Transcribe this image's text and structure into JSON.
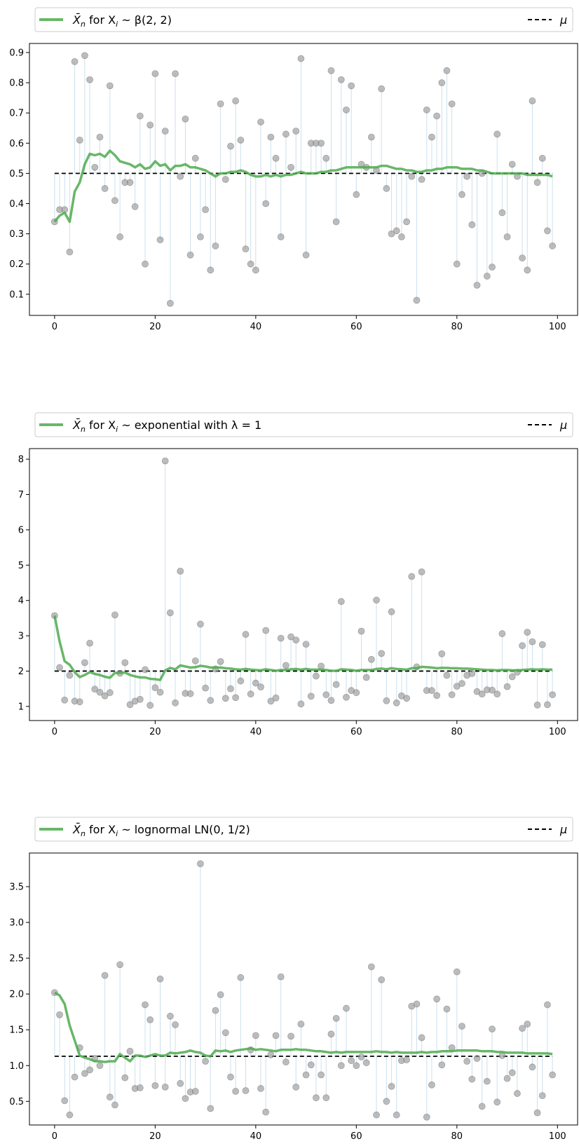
{
  "chart_data": [
    {
      "type": "scatter",
      "legend": {
        "placement": "top",
        "entries": [
          {
            "label_prefix": "X̄",
            "label_subscript": "n",
            "label_mid": " for X",
            "label_mid_subscript": "i",
            "label_suffix": " ~ β(2, 2)",
            "color": "#4daa4d"
          },
          {
            "label": "μ",
            "color": "#000000"
          }
        ]
      },
      "xlim": [
        -5,
        104
      ],
      "ylim": [
        0.03,
        0.93
      ],
      "xticks": [
        0,
        20,
        40,
        60,
        80,
        100
      ],
      "yticks": [
        0.1,
        0.2,
        0.3,
        0.4,
        0.5,
        0.6,
        0.7,
        0.8,
        0.9
      ],
      "ytick_labels": [
        "0.1",
        "0.2",
        "0.3",
        "0.4",
        "0.5",
        "0.6",
        "0.7",
        "0.8",
        "0.9"
      ],
      "mu": 0.5,
      "samples": [
        0.34,
        0.38,
        0.38,
        0.24,
        0.87,
        0.61,
        0.89,
        0.81,
        0.52,
        0.62,
        0.45,
        0.79,
        0.41,
        0.29,
        0.47,
        0.47,
        0.39,
        0.69,
        0.2,
        0.66,
        0.83,
        0.28,
        0.64,
        0.07,
        0.83,
        0.49,
        0.68,
        0.23,
        0.55,
        0.29,
        0.38,
        0.18,
        0.26,
        0.73,
        0.48,
        0.59,
        0.74,
        0.61,
        0.25,
        0.2,
        0.18,
        0.67,
        0.4,
        0.62,
        0.55,
        0.29,
        0.63,
        0.52,
        0.64,
        0.88,
        0.23,
        0.6,
        0.6,
        0.6,
        0.55,
        0.84,
        0.34,
        0.81,
        0.71,
        0.79,
        0.43,
        0.53,
        0.52,
        0.62,
        0.51,
        0.78,
        0.45,
        0.3,
        0.31,
        0.29,
        0.34,
        0.49,
        0.08,
        0.48,
        0.71,
        0.62,
        0.69,
        0.8,
        0.84,
        0.73,
        0.2,
        0.43,
        0.49,
        0.33,
        0.13,
        0.5,
        0.16,
        0.19,
        0.63,
        0.37,
        0.29,
        0.53,
        0.49,
        0.22,
        0.18,
        0.74,
        0.47,
        0.55,
        0.31,
        0.26
      ],
      "running_mean": [
        0.34,
        0.36,
        0.37,
        0.34,
        0.44,
        0.47,
        0.53,
        0.565,
        0.56,
        0.565,
        0.555,
        0.575,
        0.56,
        0.54,
        0.535,
        0.53,
        0.52,
        0.53,
        0.515,
        0.52,
        0.54,
        0.525,
        0.53,
        0.51,
        0.525,
        0.525,
        0.53,
        0.52,
        0.52,
        0.515,
        0.51,
        0.5,
        0.49,
        0.5,
        0.5,
        0.505,
        0.505,
        0.51,
        0.505,
        0.495,
        0.49,
        0.49,
        0.495,
        0.49,
        0.495,
        0.49,
        0.495,
        0.495,
        0.5,
        0.505,
        0.5,
        0.5,
        0.5,
        0.505,
        0.505,
        0.51,
        0.51,
        0.515,
        0.52,
        0.52,
        0.52,
        0.52,
        0.52,
        0.52,
        0.52,
        0.525,
        0.525,
        0.52,
        0.515,
        0.515,
        0.51,
        0.51,
        0.505,
        0.505,
        0.51,
        0.51,
        0.515,
        0.515,
        0.52,
        0.52,
        0.52,
        0.515,
        0.515,
        0.515,
        0.51,
        0.51,
        0.505,
        0.5,
        0.5,
        0.5,
        0.5,
        0.5,
        0.5,
        0.5,
        0.495,
        0.495,
        0.495,
        0.495,
        0.495,
        0.49
      ]
    },
    {
      "type": "scatter",
      "legend": {
        "placement": "top",
        "entries": [
          {
            "label_prefix": "X̄",
            "label_subscript": "n",
            "label_mid": " for X",
            "label_mid_subscript": "i",
            "label_suffix": " ~ exponential with λ = 1",
            "color": "#4daa4d"
          },
          {
            "label": "μ",
            "color": "#000000"
          }
        ]
      },
      "xlim": [
        -5,
        104
      ],
      "ylim": [
        0.6,
        8.3
      ],
      "xticks": [
        0,
        20,
        40,
        60,
        80,
        100
      ],
      "yticks": [
        1,
        2,
        3,
        4,
        5,
        6,
        7,
        8
      ],
      "ytick_labels": [
        "1",
        "2",
        "3",
        "4",
        "5",
        "6",
        "7",
        "8"
      ],
      "mu": 2.0,
      "samples": [
        3.57,
        2.1,
        1.18,
        1.88,
        1.15,
        1.13,
        2.24,
        2.79,
        1.49,
        1.4,
        1.3,
        1.39,
        3.59,
        1.94,
        2.24,
        1.05,
        1.15,
        1.2,
        2.04,
        1.03,
        1.53,
        1.4,
        7.95,
        3.65,
        1.1,
        4.83,
        1.37,
        1.36,
        2.29,
        3.33,
        1.52,
        1.17,
        2.06,
        2.27,
        1.23,
        1.5,
        1.25,
        1.72,
        3.04,
        1.35,
        1.66,
        1.55,
        3.15,
        1.15,
        1.24,
        2.93,
        2.16,
        2.97,
        2.88,
        1.07,
        2.76,
        1.29,
        1.86,
        2.14,
        1.33,
        1.17,
        1.62,
        3.97,
        1.26,
        1.45,
        1.39,
        3.13,
        1.82,
        2.33,
        4.01,
        2.5,
        1.16,
        3.68,
        1.1,
        1.3,
        1.23,
        4.68,
        2.12,
        4.81,
        1.45,
        1.45,
        1.31,
        2.49,
        1.88,
        1.33,
        1.57,
        1.65,
        1.88,
        1.93,
        1.42,
        1.35,
        1.47,
        1.46,
        1.35,
        3.06,
        1.56,
        1.84,
        1.97,
        2.72,
        3.1,
        2.83,
        1.04,
        2.75,
        1.05,
        1.33
      ],
      "running_mean": [
        3.57,
        2.84,
        2.28,
        2.18,
        1.97,
        1.83,
        1.89,
        1.97,
        1.92,
        1.89,
        1.84,
        1.81,
        1.95,
        1.95,
        1.96,
        1.89,
        1.85,
        1.82,
        1.82,
        1.78,
        1.77,
        1.75,
        2.02,
        2.09,
        2.05,
        2.16,
        2.13,
        2.1,
        2.11,
        2.15,
        2.13,
        2.1,
        2.1,
        2.1,
        2.08,
        2.07,
        2.05,
        2.04,
        2.06,
        2.04,
        2.03,
        2.02,
        2.05,
        2.03,
        2.01,
        2.03,
        2.03,
        2.05,
        2.06,
        2.04,
        2.06,
        2.04,
        2.04,
        2.04,
        2.03,
        2.01,
        2.01,
        2.05,
        2.04,
        2.03,
        2.01,
        2.03,
        2.03,
        2.03,
        2.06,
        2.07,
        2.05,
        2.08,
        2.06,
        2.05,
        2.04,
        2.08,
        2.08,
        2.12,
        2.11,
        2.1,
        2.08,
        2.09,
        2.09,
        2.08,
        2.08,
        2.07,
        2.07,
        2.06,
        2.05,
        2.04,
        2.03,
        2.03,
        2.02,
        2.03,
        2.03,
        2.02,
        2.02,
        2.03,
        2.04,
        2.05,
        2.04,
        2.05,
        2.04,
        2.04
      ]
    },
    {
      "type": "scatter",
      "legend": {
        "placement": "top",
        "entries": [
          {
            "label_prefix": "X̄",
            "label_subscript": "n",
            "label_mid": " for X",
            "label_mid_subscript": "i",
            "label_suffix": " ~ lognormal LN(0, 1/2)",
            "color": "#4daa4d"
          },
          {
            "label": "μ",
            "color": "#000000"
          }
        ]
      },
      "xlim": [
        -5,
        104
      ],
      "ylim": [
        0.17,
        3.97
      ],
      "xticks": [
        0,
        20,
        40,
        60,
        80,
        100
      ],
      "yticks": [
        0.5,
        1.0,
        1.5,
        2.0,
        2.5,
        3.0,
        3.5
      ],
      "ytick_labels": [
        "0.5",
        "1.0",
        "1.5",
        "2.0",
        "2.5",
        "3.0",
        "3.5"
      ],
      "mu": 1.13,
      "samples": [
        2.02,
        1.71,
        0.51,
        0.31,
        0.84,
        1.25,
        0.89,
        0.94,
        1.1,
        1.0,
        2.26,
        0.56,
        0.45,
        2.41,
        0.83,
        1.2,
        0.68,
        0.69,
        1.85,
        1.64,
        0.72,
        2.21,
        0.7,
        1.69,
        1.57,
        0.75,
        0.54,
        0.63,
        0.64,
        3.82,
        1.06,
        0.4,
        1.77,
        1.99,
        1.46,
        0.84,
        0.64,
        2.23,
        0.65,
        1.22,
        1.42,
        0.68,
        0.35,
        1.15,
        1.42,
        2.24,
        1.05,
        1.41,
        0.7,
        1.58,
        0.87,
        1.01,
        0.55,
        0.87,
        0.55,
        1.44,
        1.66,
        1.0,
        1.8,
        1.07,
        1.0,
        1.12,
        1.04,
        2.38,
        0.31,
        2.2,
        0.5,
        0.71,
        0.31,
        1.07,
        1.08,
        1.83,
        1.86,
        1.39,
        0.28,
        0.73,
        1.93,
        1.01,
        1.79,
        1.25,
        2.31,
        1.55,
        1.06,
        0.81,
        1.1,
        0.43,
        0.78,
        1.51,
        0.49,
        1.14,
        0.82,
        0.9,
        0.61,
        1.52,
        1.58,
        0.98,
        0.34,
        0.58,
        1.85,
        0.87
      ],
      "running_mean": [
        2.02,
        1.98,
        1.86,
        1.56,
        1.35,
        1.14,
        1.11,
        1.09,
        1.06,
        1.06,
        1.05,
        1.06,
        1.06,
        1.16,
        1.11,
        1.06,
        1.14,
        1.14,
        1.12,
        1.14,
        1.16,
        1.14,
        1.14,
        1.18,
        1.17,
        1.18,
        1.19,
        1.21,
        1.19,
        1.18,
        1.14,
        1.13,
        1.21,
        1.2,
        1.21,
        1.19,
        1.21,
        1.22,
        1.23,
        1.24,
        1.22,
        1.23,
        1.22,
        1.21,
        1.2,
        1.22,
        1.22,
        1.22,
        1.23,
        1.22,
        1.22,
        1.21,
        1.2,
        1.2,
        1.19,
        1.18,
        1.19,
        1.18,
        1.19,
        1.19,
        1.19,
        1.19,
        1.19,
        1.19,
        1.2,
        1.19,
        1.19,
        1.18,
        1.19,
        1.18,
        1.18,
        1.18,
        1.18,
        1.19,
        1.18,
        1.19,
        1.19,
        1.2,
        1.2,
        1.2,
        1.21,
        1.21,
        1.21,
        1.21,
        1.21,
        1.2,
        1.2,
        1.2,
        1.19,
        1.19,
        1.18,
        1.18,
        1.18,
        1.18,
        1.17,
        1.17,
        1.17,
        1.17,
        1.17,
        1.16
      ]
    }
  ]
}
